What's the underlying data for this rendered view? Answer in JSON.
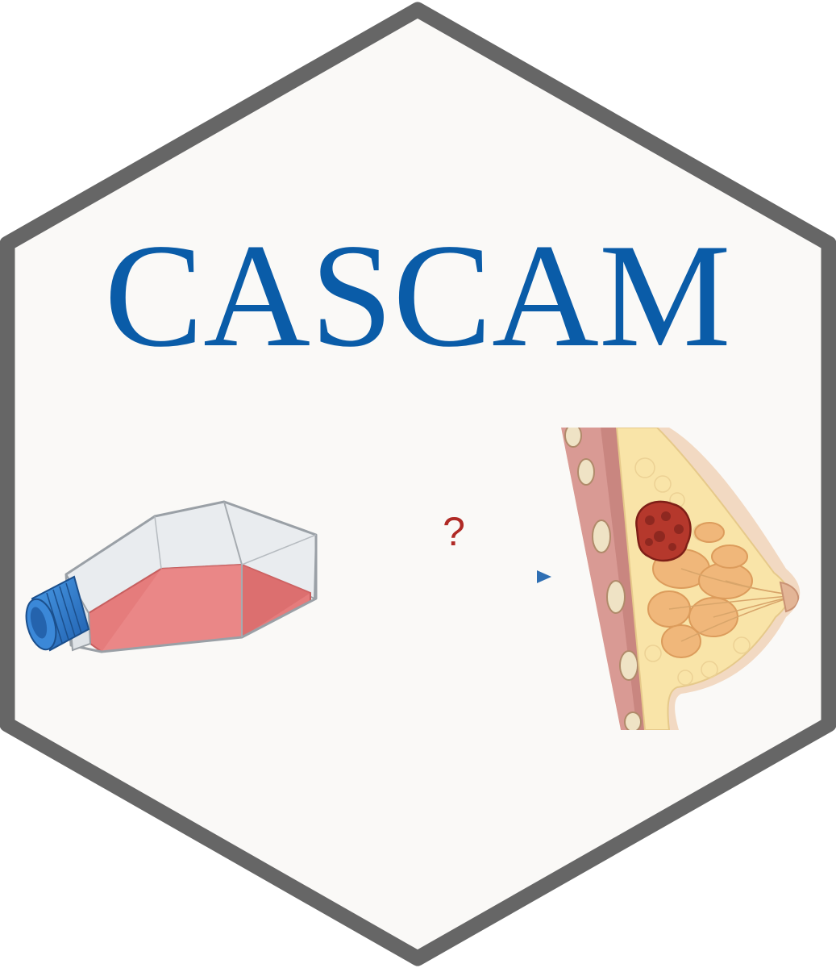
{
  "title": "CASCAM",
  "question_mark": "?",
  "colors": {
    "hex_fill": "#faf9f7",
    "hex_border": "#666666",
    "title": "#0a5ca8",
    "arrow": "#2f6fb3",
    "question_mark": "#b02a25",
    "media": "#e57c7c",
    "cap": "#2e73c2",
    "tumor": "#b5382c",
    "fat": "#f9e4a8",
    "gland": "#f0b77a",
    "muscle": "#d99a94"
  },
  "icons": {
    "flask": "cell-culture-flask-icon",
    "arrow": "right-arrow-icon",
    "breast": "breast-tumor-cross-section-icon"
  }
}
